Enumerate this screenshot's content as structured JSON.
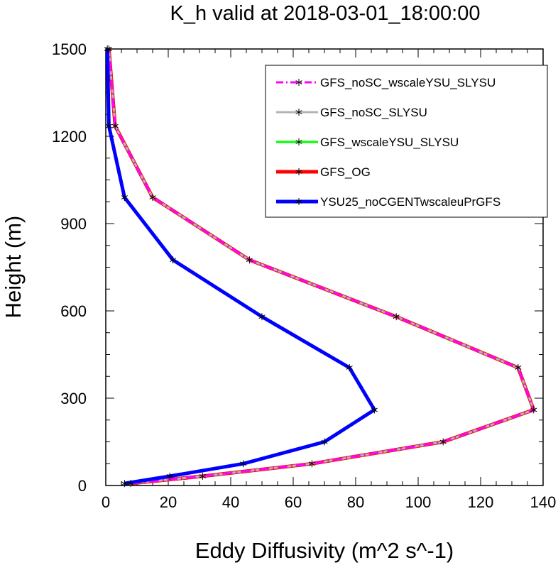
{
  "chart_data": {
    "type": "line",
    "title": "K_h valid at 2018-03-01_18:00:00",
    "xlabel": "Eddy Diffusivity (m^2 s^-1)",
    "ylabel": "Height (m)",
    "xlim": [
      0,
      140
    ],
    "ylim": [
      0,
      1500
    ],
    "xticks": [
      0,
      20,
      40,
      60,
      80,
      100,
      120,
      140
    ],
    "yticks": [
      0,
      300,
      600,
      900,
      1200,
      1500
    ],
    "legend_position": "top-right",
    "marker": "asterisk",
    "series": [
      {
        "name": "GFS_noSC_wscaleYSU_SLYSU",
        "color": "#ff00ff",
        "style": "dashed",
        "points": [
          [
            8,
            7
          ],
          [
            31,
            32
          ],
          [
            66,
            75
          ],
          [
            108,
            150
          ],
          [
            137,
            260
          ],
          [
            132,
            405
          ],
          [
            93,
            580
          ],
          [
            46,
            775
          ],
          [
            15,
            990
          ],
          [
            3,
            1235
          ],
          [
            1,
            1500
          ]
        ]
      },
      {
        "name": "GFS_noSC_SLYSU",
        "color": "#b4b4b4",
        "style": "solid",
        "points": [
          [
            8,
            7
          ],
          [
            31,
            32
          ],
          [
            66,
            75
          ],
          [
            108,
            150
          ],
          [
            137,
            260
          ],
          [
            132,
            405
          ],
          [
            93,
            580
          ],
          [
            46,
            775
          ],
          [
            15,
            990
          ],
          [
            3,
            1235
          ],
          [
            1,
            1500
          ]
        ]
      },
      {
        "name": "GFS_wscaleYSU_SLYSU",
        "color": "#00ff00",
        "style": "solid",
        "points": [
          [
            8,
            7
          ],
          [
            31,
            32
          ],
          [
            66,
            75
          ],
          [
            108,
            150
          ],
          [
            137,
            260
          ],
          [
            132,
            405
          ],
          [
            93,
            580
          ],
          [
            46,
            775
          ],
          [
            15,
            990
          ],
          [
            3,
            1235
          ],
          [
            1,
            1500
          ]
        ]
      },
      {
        "name": "GFS_OG",
        "color": "#ff0000",
        "style": "solid",
        "points": [
          [
            8,
            7
          ],
          [
            31,
            32
          ],
          [
            66,
            75
          ],
          [
            108,
            150
          ],
          [
            137,
            260
          ],
          [
            132,
            405
          ],
          [
            93,
            580
          ],
          [
            46,
            775
          ],
          [
            15,
            990
          ],
          [
            3,
            1235
          ],
          [
            1,
            1500
          ]
        ]
      },
      {
        "name": "YSU25_noCGENTwscaleuPrGFS",
        "color": "#0000ff",
        "style": "solid",
        "points": [
          [
            6,
            7
          ],
          [
            20.5,
            32
          ],
          [
            44,
            75
          ],
          [
            70,
            150
          ],
          [
            86,
            260
          ],
          [
            78,
            405
          ],
          [
            50,
            580
          ],
          [
            21.5,
            775
          ],
          [
            6,
            990
          ],
          [
            1,
            1235
          ],
          [
            0.5,
            1500
          ]
        ]
      }
    ]
  }
}
